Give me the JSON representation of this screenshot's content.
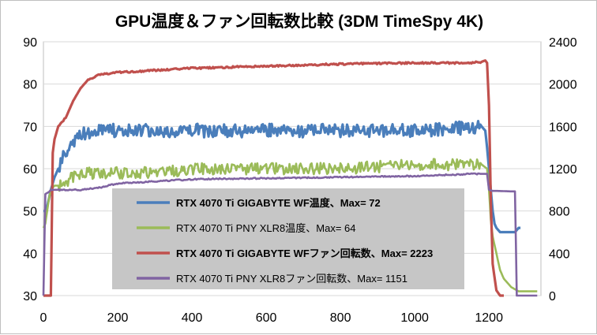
{
  "chart_data": {
    "type": "line",
    "title": "GPU温度＆ファン回転数比較 (3DM TimeSpy 4K)",
    "x_ticks": [
      "0",
      "200",
      "400",
      "600",
      "800",
      "1000",
      "1200"
    ],
    "y_left_ticks": [
      "30",
      "40",
      "50",
      "60",
      "70",
      "80",
      "90"
    ],
    "y_right_ticks": [
      "0",
      "400",
      "800",
      "1200",
      "1600",
      "2000",
      "2400"
    ],
    "xlim": [
      0,
      1340
    ],
    "ylim_left": [
      30,
      90
    ],
    "ylim_right": [
      0,
      2400
    ],
    "grid": "horizontal",
    "legend_position": "center-left",
    "series": [
      {
        "name": "RTX 4070 Ti GIGABYTE WF温度、Max= 72",
        "axis": "left",
        "color": "#4a7ebb",
        "bold": true,
        "x": [
          0,
          5,
          10,
          15,
          20,
          30,
          40,
          50,
          60,
          80,
          100,
          130,
          150,
          200,
          300,
          400,
          600,
          800,
          1000,
          1180,
          1190,
          1195,
          1200,
          1205,
          1210,
          1215,
          1220,
          1230,
          1240,
          1250,
          1260,
          1270,
          1280,
          1285
        ],
        "y": [
          50,
          50,
          51,
          53,
          55,
          58,
          60,
          62,
          64,
          66,
          68,
          69,
          69,
          69,
          69,
          69,
          69,
          69,
          69,
          70,
          69,
          65,
          60,
          55,
          50,
          47,
          46,
          45,
          45,
          45,
          45,
          45,
          46,
          46
        ]
      },
      {
        "name": "RTX 4070 Ti PNY XLR8温度、Max= 64",
        "axis": "left",
        "color": "#9bbb59",
        "bold": false,
        "x": [
          0,
          5,
          10,
          15,
          20,
          30,
          40,
          60,
          80,
          100,
          150,
          200,
          300,
          400,
          600,
          800,
          1000,
          1180,
          1195,
          1200,
          1205,
          1210,
          1220,
          1230,
          1240,
          1260,
          1280,
          1300,
          1330
        ],
        "y": [
          46,
          47,
          50,
          53,
          55,
          56,
          56,
          57,
          58,
          59,
          59,
          59,
          59,
          60,
          60,
          60,
          61,
          61,
          60,
          55,
          48,
          44,
          40,
          36,
          34,
          32,
          31,
          31,
          31
        ]
      },
      {
        "name": "RTX 4070 Ti GIGABYTE WFファン回転数、Max= 2223",
        "axis": "right",
        "color": "#c0504d",
        "bold": true,
        "x": [
          0,
          20,
          25,
          30,
          40,
          50,
          60,
          80,
          100,
          120,
          150,
          200,
          300,
          400,
          600,
          800,
          1000,
          1150,
          1180,
          1190,
          1195,
          1200,
          1205,
          1210,
          1220,
          1230,
          1240
        ],
        "y": [
          0,
          0,
          1350,
          1480,
          1600,
          1640,
          1680,
          1840,
          1960,
          2040,
          2090,
          2110,
          2130,
          2150,
          2170,
          2190,
          2200,
          2200,
          2210,
          2223,
          2200,
          1800,
          900,
          300,
          50,
          0,
          0
        ]
      },
      {
        "name": "RTX 4070 Ti PNY XLR8ファン回転数、Max= 1151",
        "axis": "right",
        "color": "#8064a2",
        "bold": false,
        "x": [
          0,
          5,
          15,
          20,
          30,
          50,
          100,
          150,
          200,
          300,
          400,
          600,
          800,
          1000,
          1150,
          1195,
          1200,
          1210,
          1220,
          1260,
          1270,
          1275,
          1280,
          1330
        ],
        "y": [
          0,
          960,
          980,
          1000,
          1000,
          1000,
          1000,
          1020,
          1060,
          1080,
          1100,
          1110,
          1120,
          1130,
          1150,
          1151,
          1000,
          990,
          990,
          985,
          985,
          0,
          0,
          0
        ]
      }
    ]
  }
}
